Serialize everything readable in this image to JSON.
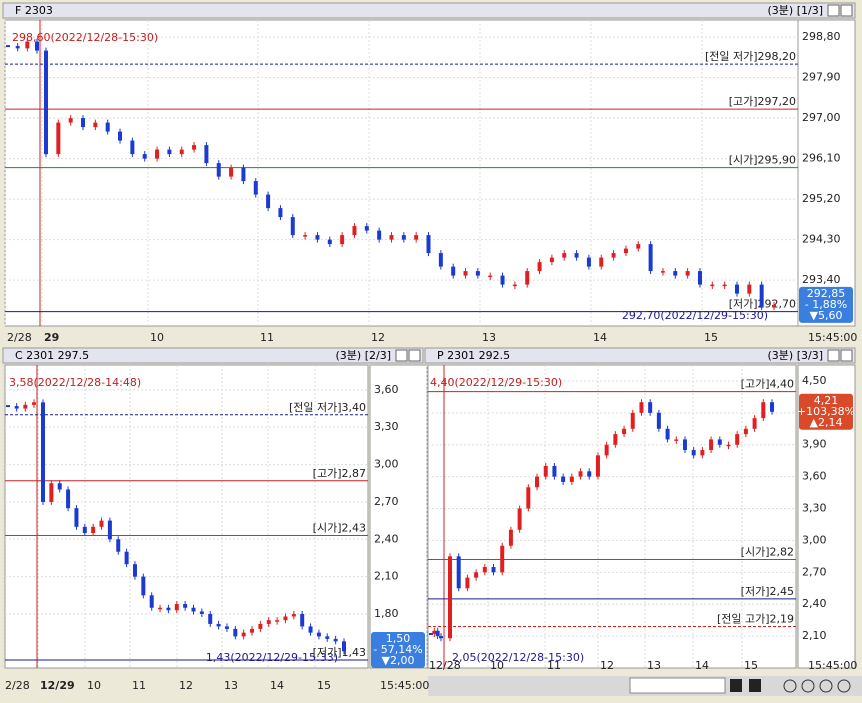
{
  "panels": [
    {
      "title": "F 2303",
      "interval": "(3분) [1/3]",
      "ylim": [
        292.38,
        299.18
      ],
      "yticks": [
        {
          "value": 298.8,
          "label": "298,80"
        },
        {
          "value": 297.9,
          "label": "297,90"
        },
        {
          "value": 297.0,
          "label": "297,00"
        },
        {
          "value": 296.1,
          "label": "296,10"
        },
        {
          "value": 295.2,
          "label": "295,20"
        },
        {
          "value": 294.3,
          "label": "294,30"
        },
        {
          "value": 293.4,
          "label": "293,40"
        }
      ],
      "refs": [
        {
          "value": 298.2,
          "label": "[전일 저가]298,20",
          "color": "#1a1aa0",
          "dash": true
        },
        {
          "value": 297.2,
          "label": "[고가]297,20",
          "color": "#d02020",
          "dash": false
        },
        {
          "value": 295.9,
          "label": "[시가]295,90",
          "color": "#208a20",
          "dash": false
        },
        {
          "value": 292.7,
          "label": "[저가]292,70",
          "color": "#1a1a90",
          "dash": false
        }
      ],
      "annotations": [
        "298,60(2022/12/28-15:30)",
        "292,70(2022/12/29-15:30)"
      ],
      "badge": [
        "292,85",
        "- 1,88%",
        "▼5,60"
      ],
      "badge_color": "#3a7fe0",
      "xticks": [
        "2/28",
        "29",
        "10",
        "11",
        "12",
        "13",
        "14",
        "15",
        "15:45:00"
      ],
      "closes": [
        298.6,
        298.55,
        298.7,
        298.5,
        296.2,
        296.9,
        297.0,
        296.8,
        296.9,
        296.7,
        296.5,
        296.2,
        296.1,
        296.3,
        296.2,
        296.3,
        296.4,
        296.0,
        295.7,
        295.9,
        295.6,
        295.3,
        295.0,
        294.8,
        294.4,
        294.4,
        294.3,
        294.2,
        294.4,
        294.6,
        294.5,
        294.3,
        294.4,
        294.3,
        294.4,
        294.0,
        293.7,
        293.5,
        293.6,
        293.5,
        293.5,
        293.3,
        293.3,
        293.6,
        293.8,
        293.9,
        294.0,
        293.9,
        293.7,
        293.9,
        294.0,
        294.1,
        294.2,
        293.6,
        293.6,
        293.5,
        293.6,
        293.3,
        293.3,
        293.3,
        293.1,
        293.3,
        292.8,
        292.85
      ]
    },
    {
      "title": "C 2301 297.5",
      "interval": "(3분) [2/3]",
      "ylim": [
        1.366,
        3.8
      ],
      "yticks": [
        {
          "value": 3.6,
          "label": "3,60"
        },
        {
          "value": 3.3,
          "label": "3,30"
        },
        {
          "value": 3.0,
          "label": "3,00"
        },
        {
          "value": 2.7,
          "label": "2,70"
        },
        {
          "value": 2.4,
          "label": "2,40"
        },
        {
          "value": 2.1,
          "label": "2,10"
        },
        {
          "value": 1.8,
          "label": "1,80"
        }
      ],
      "refs": [
        {
          "value": 3.4,
          "label": "[전일 저가]3,40",
          "color": "#1a1aa0",
          "dash": true
        },
        {
          "value": 2.87,
          "label": "[고가]2,87",
          "color": "#d02020",
          "dash": false
        },
        {
          "value": 2.43,
          "label": "[시가]2,43",
          "color": "#208a20",
          "dash": false
        },
        {
          "value": 1.43,
          "label": "[저가]1,43",
          "color": "#1a1a90",
          "dash": false
        }
      ],
      "annotations": [
        "3,58(2022/12/28-14:48)",
        "1,43(2022/12/29-15:33)"
      ],
      "badge": [
        "1,50",
        "- 57,14%",
        "▼2,00"
      ],
      "badge_color": "#3a7fe0",
      "xticks": [
        "2/28",
        "12/29",
        "10",
        "11",
        "12",
        "13",
        "14",
        "15",
        "15:45:00"
      ],
      "closes": [
        3.47,
        3.45,
        3.48,
        3.5,
        2.7,
        2.85,
        2.8,
        2.65,
        2.5,
        2.45,
        2.5,
        2.55,
        2.4,
        2.3,
        2.2,
        2.1,
        1.95,
        1.85,
        1.85,
        1.83,
        1.88,
        1.85,
        1.82,
        1.8,
        1.72,
        1.7,
        1.68,
        1.62,
        1.65,
        1.68,
        1.72,
        1.75,
        1.75,
        1.78,
        1.8,
        1.7,
        1.65,
        1.62,
        1.6,
        1.58,
        1.5
      ]
    },
    {
      "title": "P 2301 292.5",
      "interval": "(3분) [3/3]",
      "ylim": [
        1.8,
        4.65
      ],
      "yticks": [
        {
          "value": 4.5,
          "label": "4,50"
        },
        {
          "value": 4.2,
          "label": "4,20"
        },
        {
          "value": 3.9,
          "label": "3,90"
        },
        {
          "value": 3.6,
          "label": "3,60"
        },
        {
          "value": 3.3,
          "label": "3,30"
        },
        {
          "value": 3.0,
          "label": "3,00"
        },
        {
          "value": 2.7,
          "label": "2,70"
        },
        {
          "value": 2.4,
          "label": "2,40"
        },
        {
          "value": 2.1,
          "label": "2,10"
        }
      ],
      "refs": [
        {
          "value": 4.4,
          "label": "[고가]4,40",
          "color": "#d02020",
          "dash": false
        },
        {
          "value": 2.82,
          "label": "[시가]2,82",
          "color": "#208a20",
          "dash": false
        },
        {
          "value": 2.45,
          "label": "[저가]2,45",
          "color": "#1a1a90",
          "dash": false
        },
        {
          "value": 2.19,
          "label": "[전일 고가]2,19",
          "color": "#d02020",
          "dash": true
        }
      ],
      "annotations": [
        "4,40(2022/12/29-15:30)",
        "2,05(2022/12/28-15:30)"
      ],
      "badge": [
        "4,21",
        "+103,38%",
        "▲2,14"
      ],
      "badge_color": "#d84a2a",
      "xticks": [
        "12/28",
        "10",
        "11",
        "12",
        "13",
        "14",
        "15",
        "15:45:00"
      ],
      "closes": [
        2.12,
        2.15,
        2.1,
        2.08,
        2.85,
        2.55,
        2.65,
        2.7,
        2.75,
        2.7,
        2.95,
        3.1,
        3.3,
        3.5,
        3.6,
        3.7,
        3.6,
        3.55,
        3.6,
        3.65,
        3.6,
        3.8,
        3.9,
        4.0,
        4.05,
        4.2,
        4.3,
        4.2,
        4.05,
        3.95,
        3.95,
        3.85,
        3.8,
        3.85,
        3.95,
        3.9,
        3.9,
        4.0,
        4.05,
        4.15,
        4.3,
        4.21
      ]
    }
  ]
}
